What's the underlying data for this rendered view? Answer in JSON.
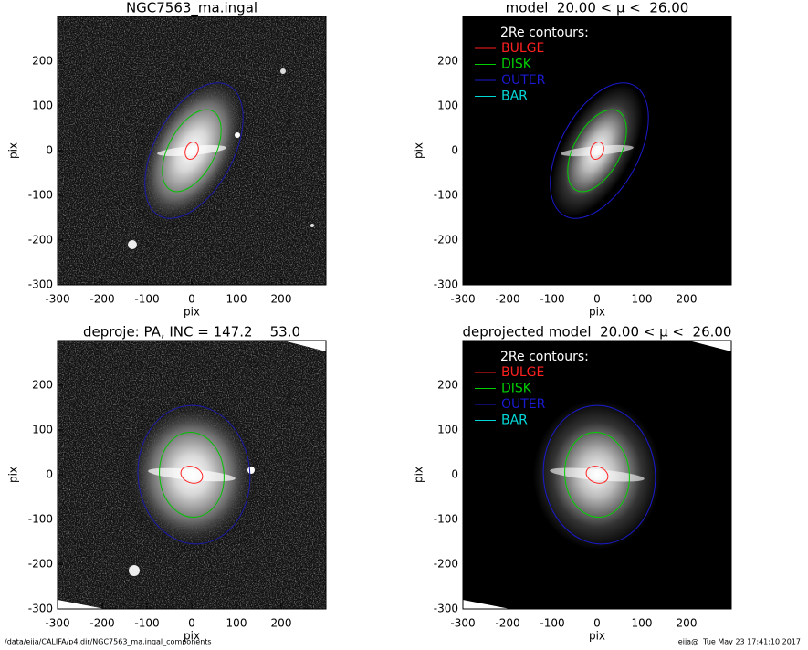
{
  "chart_data": [
    {
      "type": "image",
      "title": "NGC7563_ma.ingal",
      "xlabel": "pix",
      "ylabel": "pix",
      "xlim": [
        -300,
        300
      ],
      "ylim": [
        -300,
        300
      ],
      "xticks": [
        -300,
        -200,
        -100,
        0,
        100,
        200
      ],
      "yticks": [
        -300,
        -200,
        -100,
        0,
        100,
        200
      ],
      "contours": [
        {
          "color": "#ff2020",
          "ellipse": [
            0,
            0,
            20,
            14,
            70
          ]
        },
        {
          "color": "#00c000",
          "ellipse": [
            0,
            0,
            100,
            52,
            62
          ]
        },
        {
          "color": "#1a1aa8",
          "ellipse": [
            5,
            0,
            165,
            88,
            62
          ]
        }
      ]
    },
    {
      "type": "image",
      "title": "model  20.00 < μ <  26.00",
      "xlabel": "pix",
      "ylabel": "pix",
      "xlim": [
        -300,
        300
      ],
      "ylim": [
        -300,
        300
      ],
      "xticks": [
        -300,
        -200,
        -100,
        0,
        100,
        200
      ],
      "yticks": [
        -300,
        -200,
        -100,
        0,
        100,
        200
      ],
      "legend_title": "2Re contours:",
      "series": [
        {
          "name": "BULGE",
          "color": "#ff2020",
          "ellipse": [
            0,
            0,
            20,
            14,
            70
          ]
        },
        {
          "name": "DISK",
          "color": "#00d000",
          "ellipse": [
            0,
            0,
            100,
            52,
            62
          ]
        },
        {
          "name": "OUTER",
          "color": "#1a1ad0",
          "ellipse": [
            5,
            0,
            165,
            88,
            62
          ]
        },
        {
          "name": "BAR",
          "color": "#00d8d8"
        }
      ]
    },
    {
      "type": "image",
      "title": "deproje: PA, INC = 147.2    53.0",
      "xlabel": "pix",
      "ylabel": "pix",
      "xlim": [
        -300,
        300
      ],
      "ylim": [
        -300,
        300
      ],
      "xticks": [
        -300,
        -200,
        -100,
        0,
        100,
        200
      ],
      "yticks": [
        -300,
        -200,
        -100,
        0,
        100,
        200
      ],
      "contours": [
        {
          "color": "#ff2020",
          "ellipse": [
            0,
            0,
            25,
            18,
            -20
          ]
        },
        {
          "color": "#00c000",
          "ellipse": [
            0,
            0,
            95,
            72,
            95
          ]
        },
        {
          "color": "#1a1aa8",
          "ellipse": [
            5,
            0,
            155,
            125,
            95
          ]
        }
      ]
    },
    {
      "type": "image",
      "title": "deprojected model  20.00 < μ <  26.00",
      "xlabel": "pix",
      "ylabel": "pix",
      "xlim": [
        -300,
        300
      ],
      "ylim": [
        -300,
        300
      ],
      "xticks": [
        -300,
        -200,
        -100,
        0,
        100,
        200
      ],
      "yticks": [
        -300,
        -200,
        -100,
        0,
        100,
        200
      ],
      "legend_title": "2Re contours:",
      "series": [
        {
          "name": "BULGE",
          "color": "#ff2020",
          "ellipse": [
            0,
            0,
            25,
            18,
            -20
          ]
        },
        {
          "name": "DISK",
          "color": "#00d000",
          "ellipse": [
            0,
            0,
            95,
            72,
            95
          ]
        },
        {
          "name": "OUTER",
          "color": "#1a1ad0",
          "ellipse": [
            5,
            0,
            155,
            125,
            95
          ]
        },
        {
          "name": "BAR",
          "color": "#00d8d8"
        }
      ]
    }
  ],
  "footer": {
    "left": "/data/eija/CALIFA/p4.dir/NGC7563_ma.ingal_components",
    "right": "eija@  Tue May 23 17:41:10 2017"
  }
}
